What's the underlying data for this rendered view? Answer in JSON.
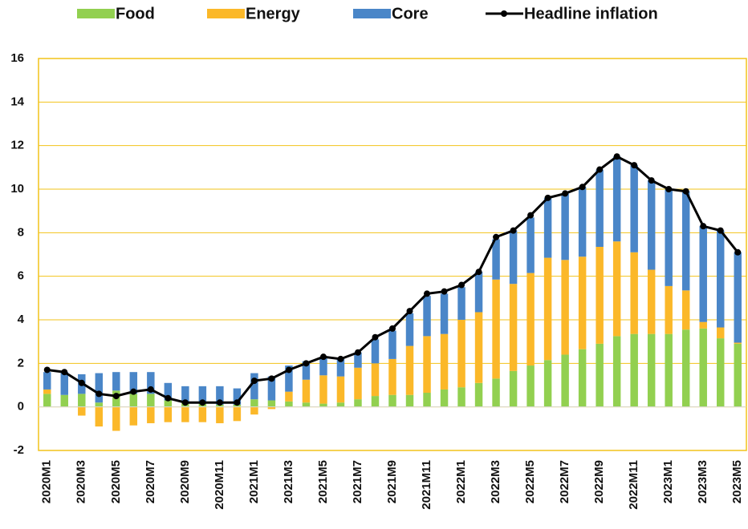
{
  "chart_data": {
    "type": "bar",
    "stacked": true,
    "categories": [
      "2020M1",
      null,
      "2020M3",
      null,
      "2020M5",
      null,
      "2020M7",
      null,
      "2020M9",
      null,
      "2020M11",
      null,
      "2021M1",
      null,
      "2021M3",
      null,
      "2021M5",
      null,
      "2021M7",
      null,
      "2021M9",
      null,
      "2021M11",
      null,
      "2022M1",
      null,
      "2022M3",
      null,
      "2022M5",
      null,
      "2022M7",
      null,
      "2022M9",
      null,
      "2022M11",
      null,
      "2023M1",
      null,
      "2023M3",
      null,
      "2023M5"
    ],
    "series": [
      {
        "name": "Food",
        "type": "bar",
        "color": "#92d050",
        "values": [
          0.6,
          0.55,
          0.6,
          0.2,
          0.75,
          0.6,
          0.6,
          0.3,
          0.2,
          0.15,
          0.1,
          0.1,
          0.35,
          0.3,
          0.25,
          0.2,
          0.15,
          0.2,
          0.35,
          0.5,
          0.55,
          0.55,
          0.65,
          0.8,
          0.9,
          1.1,
          1.3,
          1.65,
          1.9,
          2.15,
          2.4,
          2.65,
          2.9,
          3.25,
          3.35,
          3.35,
          3.35,
          3.55,
          3.6,
          3.15,
          2.9
        ]
      },
      {
        "name": "Energy",
        "type": "bar",
        "color": "#fbb829",
        "values": [
          0.2,
          0,
          -0.4,
          -0.9,
          -1.1,
          -0.85,
          -0.75,
          -0.7,
          -0.7,
          -0.7,
          -0.75,
          -0.65,
          -0.35,
          -0.1,
          0.45,
          1.05,
          1.3,
          1.2,
          1.45,
          1.5,
          1.65,
          2.25,
          2.6,
          2.55,
          3.1,
          3.25,
          4.55,
          4.0,
          4.25,
          4.7,
          4.35,
          4.25,
          4.45,
          4.35,
          3.75,
          2.95,
          2.2,
          1.8,
          0.3,
          0.5,
          0.05
        ]
      },
      {
        "name": "Core",
        "type": "bar",
        "color": "#4a86c8",
        "values": [
          0.8,
          1.05,
          0.9,
          1.35,
          0.85,
          1.0,
          1.0,
          0.8,
          0.75,
          0.8,
          0.85,
          0.75,
          1.2,
          1.1,
          1.2,
          0.85,
          0.85,
          0.8,
          0.7,
          1.1,
          1.3,
          1.5,
          1.85,
          1.85,
          1.5,
          1.85,
          1.85,
          2.45,
          2.55,
          2.75,
          3.05,
          3.2,
          3.55,
          3.9,
          4.0,
          4.1,
          4.45,
          4.55,
          4.4,
          4.45,
          4.15
        ]
      },
      {
        "name": "Headline inflation",
        "type": "line",
        "color": "#000000",
        "values": [
          1.7,
          1.6,
          1.1,
          0.6,
          0.5,
          0.7,
          0.8,
          0.4,
          0.2,
          0.2,
          0.2,
          0.2,
          1.2,
          1.3,
          1.7,
          2.0,
          2.3,
          2.2,
          2.5,
          3.2,
          3.6,
          4.4,
          5.2,
          5.3,
          5.6,
          6.2,
          7.8,
          8.1,
          8.8,
          9.6,
          9.8,
          10.1,
          10.9,
          11.5,
          11.1,
          10.4,
          10.0,
          9.9,
          8.3,
          8.1,
          7.1
        ]
      }
    ],
    "ylim": [
      -2,
      16
    ],
    "yticks": [
      -2,
      0,
      2,
      4,
      6,
      8,
      10,
      12,
      14,
      16
    ],
    "grid": true,
    "grid_color": "#f2c31a",
    "legend": "top"
  }
}
